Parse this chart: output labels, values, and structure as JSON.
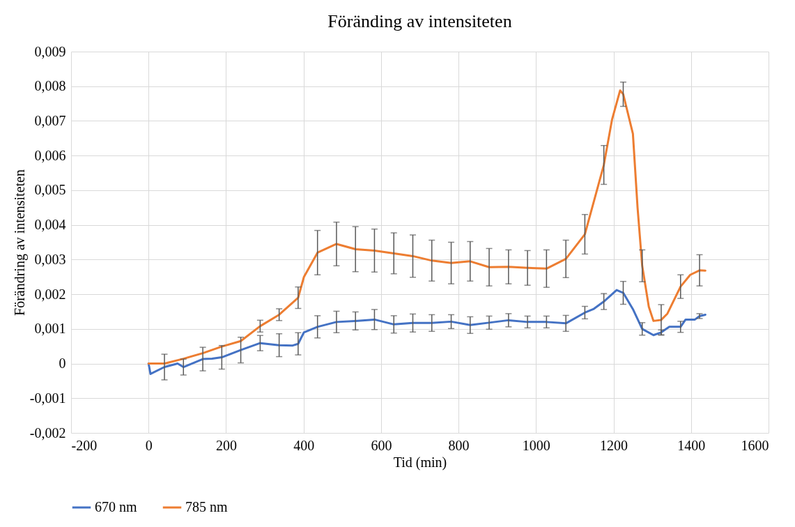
{
  "chart_data": {
    "type": "line",
    "title": "Föränding av intensiteten",
    "xlabel": "Tid (min)",
    "ylabel": "Förändring av intensiteten",
    "xlim": [
      -200,
      1600
    ],
    "xticks": [
      -200,
      0,
      200,
      400,
      600,
      800,
      1000,
      1200,
      1400,
      1600
    ],
    "ylim": [
      -0.002,
      0.009
    ],
    "yticks": [
      {
        "value": -0.002,
        "label": "-0,002"
      },
      {
        "value": -0.001,
        "label": "-0,001"
      },
      {
        "value": 0,
        "label": "0"
      },
      {
        "value": 0.001,
        "label": "0,001"
      },
      {
        "value": 0.002,
        "label": "0,002"
      },
      {
        "value": 0.003,
        "label": "0,003"
      },
      {
        "value": 0.004,
        "label": "0,004"
      },
      {
        "value": 0.005,
        "label": "0,005"
      },
      {
        "value": 0.006,
        "label": "0,006"
      },
      {
        "value": 0.007,
        "label": "0,007"
      },
      {
        "value": 0.008,
        "label": "0,008"
      },
      {
        "value": 0.009,
        "label": "0,009"
      }
    ],
    "grid": true,
    "legend": "bottom",
    "series": [
      {
        "name": "670 nm",
        "color": "#4472c4",
        "x": [
          0,
          5,
          41,
          75,
          90,
          140,
          164,
          189,
          238,
          288,
          337,
          372,
          386,
          401,
          436,
          485,
          534,
          583,
          633,
          682,
          731,
          781,
          830,
          879,
          929,
          978,
          1027,
          1077,
          1126,
          1148,
          1175,
          1208,
          1225,
          1250,
          1274,
          1303,
          1323,
          1344,
          1373,
          1386,
          1410,
          1422,
          1437
        ],
        "values": [
          0,
          -0.0003,
          -0.0001,
          0,
          -0.0001,
          0.00013,
          0.00014,
          0.00018,
          0.00039,
          0.00059,
          0.00053,
          0.00052,
          0.00057,
          0.0009,
          0.00106,
          0.0012,
          0.00123,
          0.00127,
          0.00113,
          0.00117,
          0.00117,
          0.00121,
          0.00111,
          0.00118,
          0.00125,
          0.0012,
          0.0012,
          0.00116,
          0.00147,
          0.00157,
          0.00179,
          0.00212,
          0.00204,
          0.00157,
          0.001,
          0.00082,
          0.0009,
          0.00106,
          0.00106,
          0.00127,
          0.00127,
          0.00137,
          0.00141
        ],
        "errors": [
          null,
          null,
          0.00037,
          null,
          0.00023,
          0.00034,
          null,
          0.00034,
          0.00037,
          0.00022,
          0.00033,
          null,
          0.00032,
          null,
          0.00032,
          0.00031,
          0.00026,
          0.00029,
          0.00025,
          0.00026,
          0.00024,
          0.0002,
          0.00024,
          0.00019,
          0.00019,
          0.00017,
          0.00017,
          0.00023,
          0.00018,
          null,
          0.00023,
          null,
          0.00033,
          null,
          0.00018,
          null,
          7e-05,
          null,
          0.00016,
          null,
          null,
          7e-05,
          null
        ]
      },
      {
        "name": "785 nm",
        "color": "#ed7d31",
        "x": [
          0,
          41,
          90,
          140,
          189,
          238,
          288,
          337,
          386,
          401,
          436,
          485,
          534,
          583,
          633,
          682,
          731,
          781,
          830,
          879,
          929,
          978,
          1027,
          1077,
          1126,
          1175,
          1196,
          1217,
          1225,
          1250,
          1262,
          1274,
          1291,
          1303,
          1323,
          1339,
          1373,
          1398,
          1422,
          1437
        ],
        "values": [
          0,
          0,
          0.00014,
          0.0003,
          0.00049,
          0.00065,
          0.00108,
          0.00141,
          0.0019,
          0.0025,
          0.0032,
          0.00345,
          0.0033,
          0.00326,
          0.00318,
          0.0031,
          0.00297,
          0.0029,
          0.00295,
          0.00278,
          0.00279,
          0.00276,
          0.00274,
          0.00302,
          0.00373,
          0.00573,
          0.00703,
          0.00788,
          0.00777,
          0.00663,
          0.0045,
          0.00282,
          0.00164,
          0.00123,
          0.00126,
          0.00144,
          0.00222,
          0.00256,
          0.00269,
          0.00268
        ],
        "errors": [
          null,
          null,
          null,
          null,
          null,
          null,
          0.00017,
          0.00017,
          0.00031,
          null,
          0.00064,
          0.00063,
          0.00065,
          0.00062,
          0.00059,
          0.00061,
          0.00059,
          0.0006,
          0.00057,
          0.00054,
          0.00049,
          0.0005,
          0.00054,
          0.00054,
          0.00057,
          0.00056,
          null,
          null,
          0.00035,
          null,
          null,
          0.00046,
          null,
          null,
          0.00044,
          null,
          0.00034,
          null,
          0.00045,
          null
        ]
      }
    ]
  }
}
